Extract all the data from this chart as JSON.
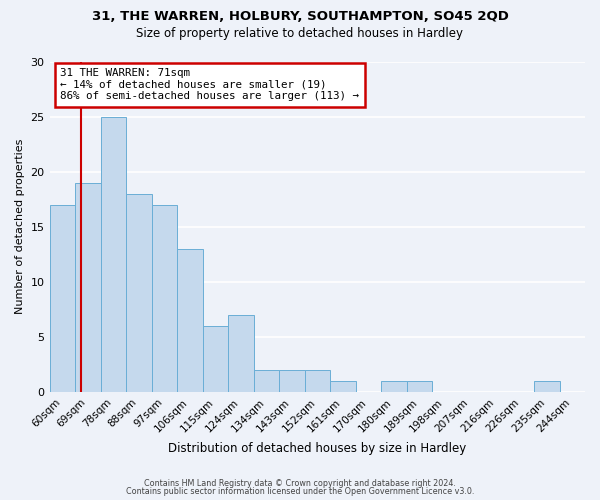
{
  "title1": "31, THE WARREN, HOLBURY, SOUTHAMPTON, SO45 2QD",
  "title2": "Size of property relative to detached houses in Hardley",
  "xlabel": "Distribution of detached houses by size in Hardley",
  "ylabel": "Number of detached properties",
  "categories": [
    "60sqm",
    "69sqm",
    "78sqm",
    "88sqm",
    "97sqm",
    "106sqm",
    "115sqm",
    "124sqm",
    "134sqm",
    "143sqm",
    "152sqm",
    "161sqm",
    "170sqm",
    "180sqm",
    "189sqm",
    "198sqm",
    "207sqm",
    "216sqm",
    "226sqm",
    "235sqm",
    "244sqm"
  ],
  "values": [
    17,
    19,
    25,
    18,
    17,
    13,
    6,
    7,
    2,
    2,
    2,
    1,
    0,
    1,
    1,
    0,
    0,
    0,
    0,
    1,
    0
  ],
  "bar_color": "#c5d9ed",
  "bar_edge_color": "#6aaed6",
  "background_color": "#eef2f9",
  "grid_color": "#ffffff",
  "marker_color": "#cc0000",
  "annotation_title": "31 THE WARREN: 71sqm",
  "annotation_line1": "← 14% of detached houses are smaller (19)",
  "annotation_line2": "86% of semi-detached houses are larger (113) →",
  "annotation_box_color": "#cc0000",
  "ylim": [
    0,
    30
  ],
  "yticks": [
    0,
    5,
    10,
    15,
    20,
    25,
    30
  ],
  "footer1": "Contains HM Land Registry data © Crown copyright and database right 2024.",
  "footer2": "Contains public sector information licensed under the Open Government Licence v3.0."
}
